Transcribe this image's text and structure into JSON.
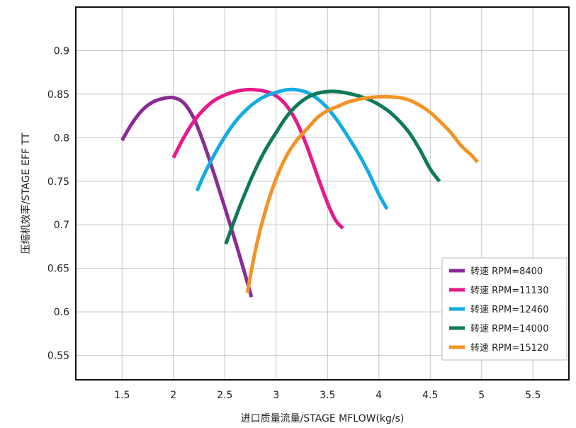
{
  "chart_data": {
    "type": "line",
    "title": "",
    "xlabel": "进口质量流量/STAGE MFLOW(kg/s)",
    "ylabel": "压缩机效率/STAGE EFF TT",
    "xlim": [
      1.05,
      5.85
    ],
    "ylim": [
      0.522,
      0.95
    ],
    "x_ticks": [
      "1.5",
      "2",
      "2.5",
      "3",
      "3.5",
      "4",
      "4.5",
      "5",
      "5.5"
    ],
    "y_ticks": [
      "0.55",
      "0.6",
      "0.65",
      "0.7",
      "0.75",
      "0.8",
      "0.85",
      "0.9"
    ],
    "grid": true,
    "legend_position": "bottom-right",
    "series": [
      {
        "name": "转速 RPM=8400",
        "color": "#8B2C94",
        "points": [
          [
            1.5,
            0.797
          ],
          [
            1.6,
            0.817
          ],
          [
            1.7,
            0.832
          ],
          [
            1.8,
            0.841
          ],
          [
            1.9,
            0.845
          ],
          [
            2.0,
            0.846
          ],
          [
            2.1,
            0.84
          ],
          [
            2.2,
            0.822
          ],
          [
            2.3,
            0.792
          ],
          [
            2.4,
            0.757
          ],
          [
            2.5,
            0.72
          ],
          [
            2.6,
            0.682
          ],
          [
            2.7,
            0.642
          ],
          [
            2.76,
            0.617
          ]
        ]
      },
      {
        "name": "转速 RPM=11130",
        "color": "#E8198B",
        "points": [
          [
            2.0,
            0.777
          ],
          [
            2.1,
            0.8
          ],
          [
            2.2,
            0.819
          ],
          [
            2.3,
            0.833
          ],
          [
            2.4,
            0.843
          ],
          [
            2.5,
            0.849
          ],
          [
            2.6,
            0.853
          ],
          [
            2.7,
            0.855
          ],
          [
            2.8,
            0.855
          ],
          [
            2.9,
            0.853
          ],
          [
            3.0,
            0.848
          ],
          [
            3.1,
            0.837
          ],
          [
            3.2,
            0.818
          ],
          [
            3.3,
            0.79
          ],
          [
            3.4,
            0.757
          ],
          [
            3.5,
            0.725
          ],
          [
            3.58,
            0.705
          ],
          [
            3.65,
            0.696
          ]
        ]
      },
      {
        "name": "转速 RPM=12460",
        "color": "#13ABE3",
        "points": [
          [
            2.23,
            0.739
          ],
          [
            2.3,
            0.758
          ],
          [
            2.4,
            0.781
          ],
          [
            2.5,
            0.801
          ],
          [
            2.6,
            0.818
          ],
          [
            2.7,
            0.831
          ],
          [
            2.8,
            0.841
          ],
          [
            2.9,
            0.848
          ],
          [
            3.0,
            0.852
          ],
          [
            3.1,
            0.855
          ],
          [
            3.2,
            0.855
          ],
          [
            3.3,
            0.852
          ],
          [
            3.4,
            0.845
          ],
          [
            3.5,
            0.834
          ],
          [
            3.6,
            0.819
          ],
          [
            3.7,
            0.801
          ],
          [
            3.8,
            0.782
          ],
          [
            3.9,
            0.76
          ],
          [
            4.0,
            0.735
          ],
          [
            4.08,
            0.718
          ]
        ]
      },
      {
        "name": "转速 RPM=14000",
        "color": "#0E7A56",
        "points": [
          [
            2.51,
            0.678
          ],
          [
            2.6,
            0.707
          ],
          [
            2.7,
            0.737
          ],
          [
            2.8,
            0.764
          ],
          [
            2.9,
            0.787
          ],
          [
            3.0,
            0.806
          ],
          [
            3.1,
            0.824
          ],
          [
            3.2,
            0.837
          ],
          [
            3.3,
            0.846
          ],
          [
            3.4,
            0.851
          ],
          [
            3.5,
            0.853
          ],
          [
            3.6,
            0.853
          ],
          [
            3.7,
            0.851
          ],
          [
            3.8,
            0.848
          ],
          [
            3.9,
            0.844
          ],
          [
            4.0,
            0.838
          ],
          [
            4.1,
            0.83
          ],
          [
            4.2,
            0.819
          ],
          [
            4.3,
            0.805
          ],
          [
            4.4,
            0.786
          ],
          [
            4.5,
            0.764
          ],
          [
            4.59,
            0.75
          ]
        ]
      },
      {
        "name": "转速 RPM=15120",
        "color": "#F39325",
        "points": [
          [
            2.72,
            0.622
          ],
          [
            2.8,
            0.672
          ],
          [
            2.9,
            0.718
          ],
          [
            3.0,
            0.753
          ],
          [
            3.1,
            0.779
          ],
          [
            3.2,
            0.797
          ],
          [
            3.3,
            0.81
          ],
          [
            3.4,
            0.823
          ],
          [
            3.5,
            0.831
          ],
          [
            3.6,
            0.836
          ],
          [
            3.7,
            0.841
          ],
          [
            3.8,
            0.844
          ],
          [
            3.9,
            0.846
          ],
          [
            4.0,
            0.847
          ],
          [
            4.1,
            0.847
          ],
          [
            4.2,
            0.846
          ],
          [
            4.3,
            0.843
          ],
          [
            4.4,
            0.837
          ],
          [
            4.5,
            0.829
          ],
          [
            4.6,
            0.818
          ],
          [
            4.7,
            0.806
          ],
          [
            4.8,
            0.791
          ],
          [
            4.9,
            0.78
          ],
          [
            4.96,
            0.772
          ]
        ]
      }
    ]
  }
}
